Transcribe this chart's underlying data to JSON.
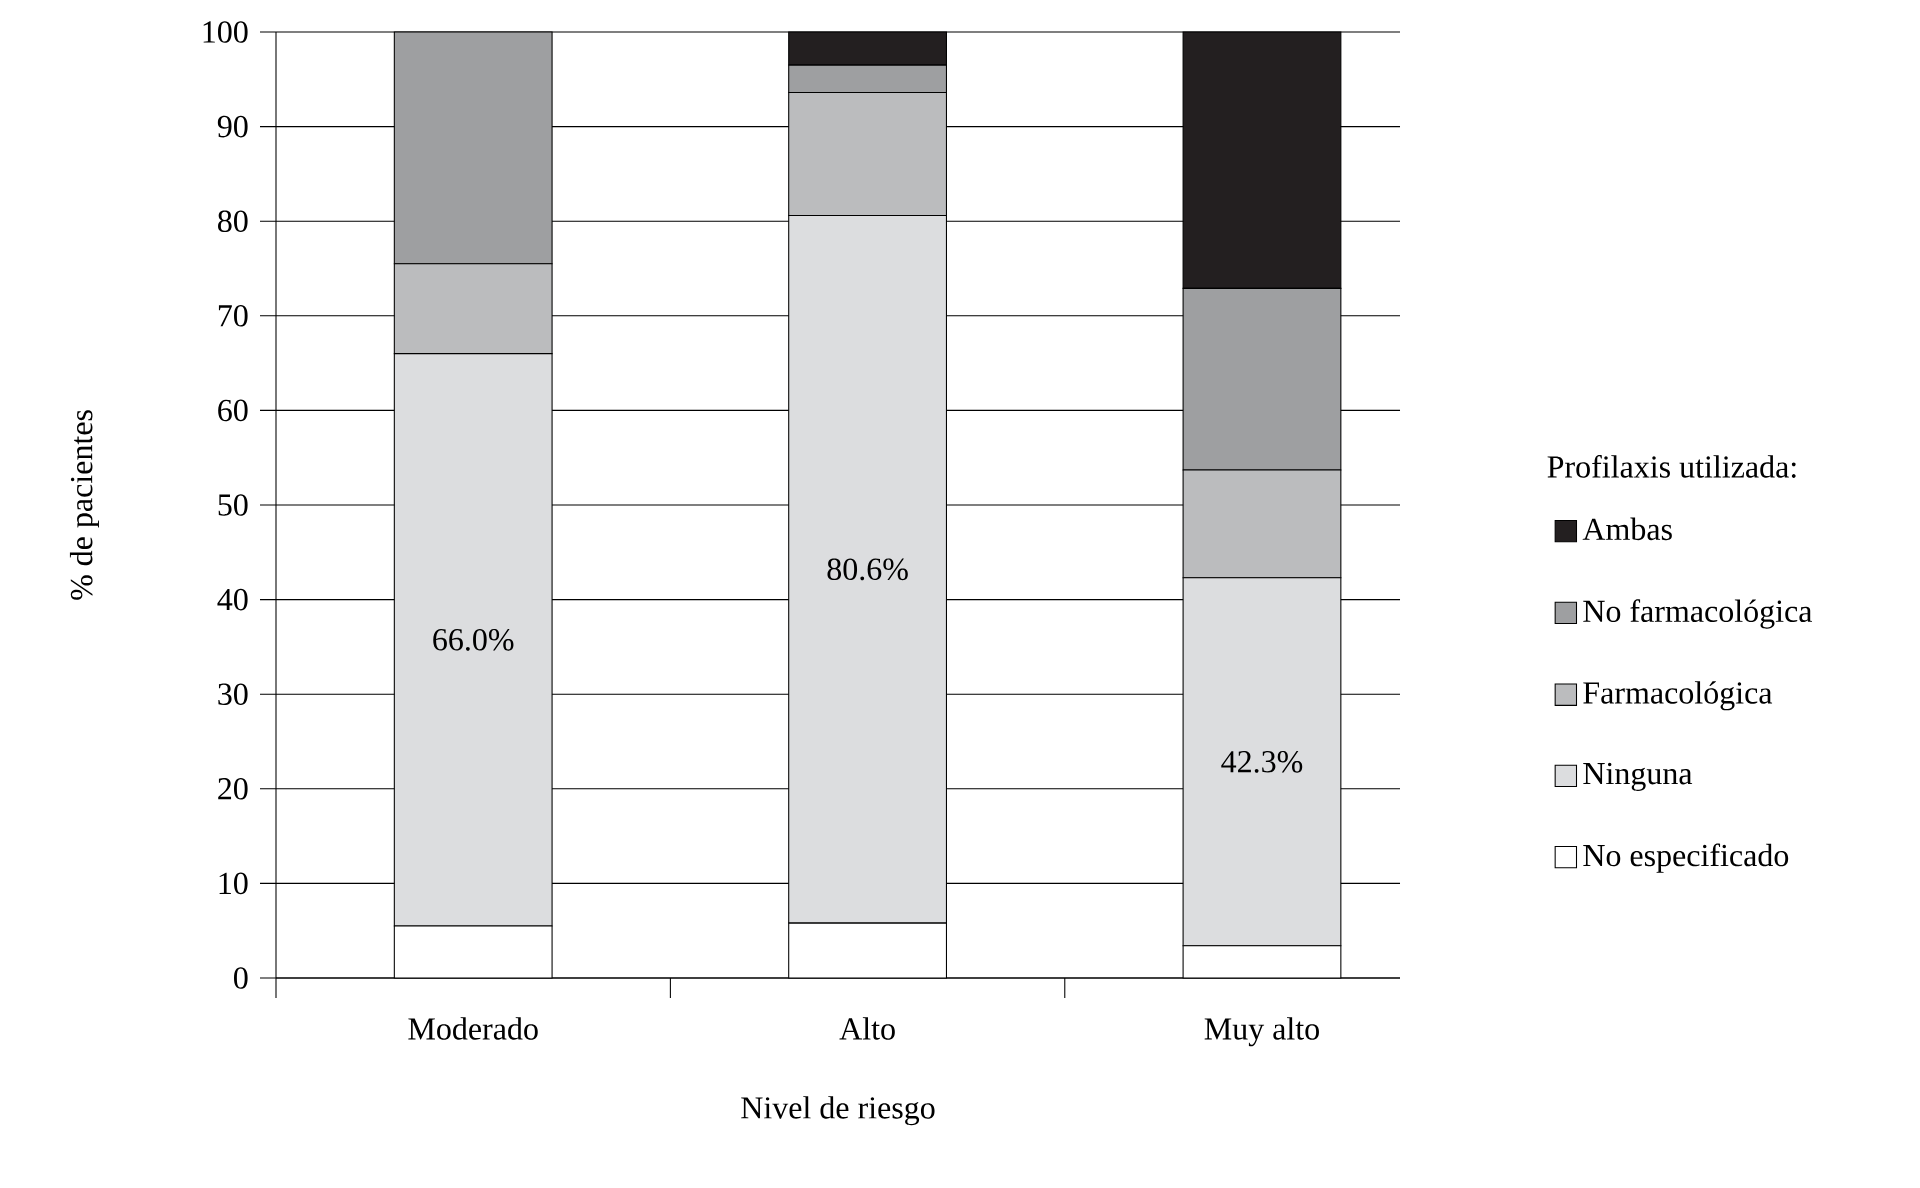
{
  "chart_data": {
    "type": "bar",
    "stacked": true,
    "xlabel": "Nivel de riesgo",
    "ylabel": "% de pacientes",
    "legend_title": "Profilaxis utilizada:",
    "legend": "right",
    "grid": "y",
    "categories": [
      "Moderado",
      "Alto",
      "Muy alto"
    ],
    "ylim": [
      0,
      100
    ],
    "yticks": [
      0,
      10,
      20,
      30,
      40,
      50,
      60,
      70,
      80,
      90,
      100
    ],
    "series": [
      {
        "name": "No especificado",
        "color": "#ffffff",
        "values": [
          5.5,
          5.8,
          3.4
        ]
      },
      {
        "name": "Ninguna",
        "color": "#dcdddf",
        "values": [
          60.5,
          74.8,
          38.9
        ]
      },
      {
        "name": "Farmacológica",
        "color": "#bbbcbe",
        "values": [
          9.5,
          13.0,
          11.4
        ]
      },
      {
        "name": "No farmacológica",
        "color": "#9e9fa1",
        "values": [
          24.5,
          2.9,
          19.2
        ]
      },
      {
        "name": "Ambas",
        "color": "#231f20",
        "values": [
          0,
          3.5,
          27.1
        ]
      }
    ],
    "annotations": [
      "66.0%",
      "80.6%",
      "42.3%"
    ]
  }
}
